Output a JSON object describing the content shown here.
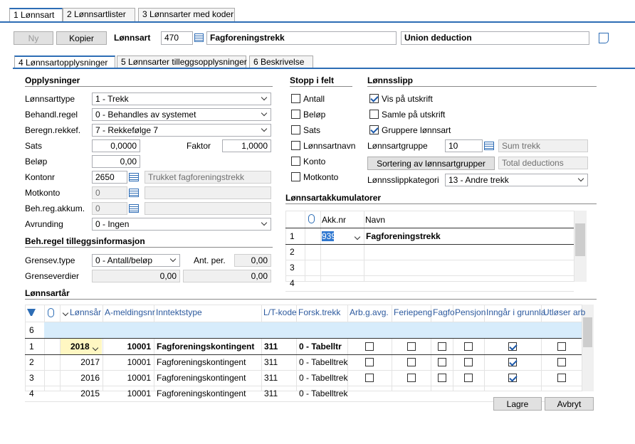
{
  "tabs": [
    "1 Lønnsart",
    "2 Lønnsartlister",
    "3 Lønnsarter med koder"
  ],
  "toolbar": {
    "new": "Ny",
    "copy": "Kopier",
    "label": "Lønnsart",
    "number": "470",
    "name": "Fagforeningstrekk",
    "english_name": "Union deduction"
  },
  "subtabs": [
    "4 Lønnsartopplysninger",
    "5 Lønnsarter tilleggsopplysninger",
    "6 Beskrivelse"
  ],
  "details": {
    "title": "Opplysninger",
    "type_label": "Lønnsarttype",
    "type": "1 - Trekk",
    "rule_label": "Behandl.regel",
    "rule": "0 - Behandles av systemet",
    "order_label": "Beregn.rekkef.",
    "order": "7 - Rekkefølge 7",
    "rate_label": "Sats",
    "rate": "0,0000",
    "factor_label": "Faktor",
    "factor": "1,0000",
    "amount_label": "Beløp",
    "amount": "0,00",
    "account_label": "Kontonr",
    "account": "2650",
    "account_name": "Trukket fagforeningstrekk",
    "counter_label": "Motkonto",
    "counter": "0",
    "accum_label": "Beh.reg.akkum.",
    "accum": "0",
    "rounding_label": "Avrunding",
    "rounding": "0 - Ingen"
  },
  "extra": {
    "title": "Beh.regel tilleggsinformasjon",
    "limit_type_label": "Grensev.type",
    "limit_type": "0 - Antall/beløp",
    "per_label": "Ant. per.",
    "per": "0,00",
    "limits_label": "Grenseverdier",
    "limit_1": "0,00",
    "limit_2": "0,00"
  },
  "stop": {
    "title": "Stopp i felt",
    "items": [
      {
        "label": "Antall",
        "checked": false
      },
      {
        "label": "Beløp",
        "checked": false
      },
      {
        "label": "Sats",
        "checked": false
      },
      {
        "label": "Lønnsartnavn",
        "checked": false
      },
      {
        "label": "Konto",
        "checked": false
      },
      {
        "label": "Motkonto",
        "checked": false
      }
    ]
  },
  "payslip": {
    "title": "Lønnsslipp",
    "items": [
      {
        "label": "Vis på utskrift",
        "checked": true
      },
      {
        "label": "Samle på utskrift",
        "checked": false
      },
      {
        "label": "Gruppere lønnsart",
        "checked": true
      }
    ],
    "group_label": "Lønnsartgruppe",
    "group": "10",
    "group_name": "Sum trekk",
    "sort_button": "Sortering av lønnsartgrupper",
    "group_english": "Total deductions",
    "category_label": "Lønnsslippkategori",
    "category": "13 - Andre trekk"
  },
  "accumulators": {
    "title": "Lønnsartakkumulatorer",
    "columns": [
      "Akk.nr",
      "Navn"
    ],
    "rows": [
      {
        "row": "1",
        "number": "939",
        "name": "Fagforeningstrekk"
      },
      {
        "row": "2"
      },
      {
        "row": "3"
      },
      {
        "row": "4"
      }
    ]
  },
  "years": {
    "title": "Lønnsartår",
    "columns": [
      "Lønnsår",
      "A-meldingsnr",
      "Inntektstype",
      "L/T-kode",
      "Forsk.trekk",
      "Arb.g.avg.",
      "Feriepeng",
      "Fagfo",
      "Pensjon",
      "Inngår i grunnla",
      "Utløser arb"
    ],
    "new_row": "6",
    "rows": [
      {
        "row": "1",
        "cells": [
          "2018",
          "10001",
          "Fagforeningskontingent",
          "311",
          "0 - Tabelltr"
        ],
        "checks": [
          false,
          false,
          false,
          false,
          true,
          false
        ]
      },
      {
        "row": "2",
        "cells": [
          "2017",
          "10001",
          "Fagforeningskontingent",
          "311",
          "0 - Tabelltrek"
        ],
        "checks": [
          false,
          false,
          false,
          false,
          true,
          false
        ]
      },
      {
        "row": "3",
        "cells": [
          "2016",
          "10001",
          "Fagforeningskontingent",
          "311",
          "0 - Tabelltrek"
        ],
        "checks": [
          false,
          false,
          false,
          false,
          true,
          false
        ]
      },
      {
        "row": "4",
        "cells": [
          "2015",
          "10001",
          "Fagforeningskontingent",
          "311",
          "0 - Tabelltrek"
        ]
      }
    ]
  },
  "buttons": {
    "save": "Lagre",
    "cancel": "Avbryt"
  }
}
